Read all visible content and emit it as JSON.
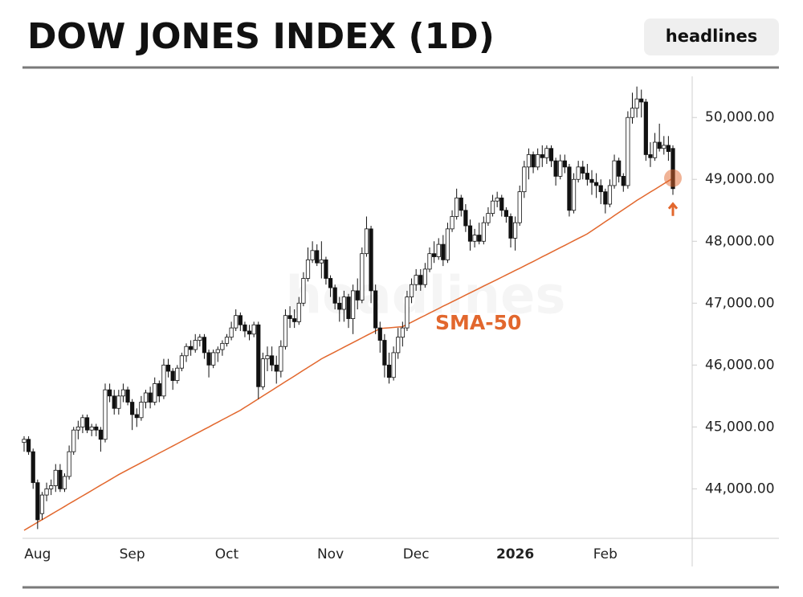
{
  "chart_data": {
    "type": "candlestick",
    "title": "DOW JONES INDEX (1D)",
    "button": "headlines",
    "watermark": "headlines",
    "up_color": "#ffffff",
    "down_color": "#111111",
    "ylim": [
      43200,
      50600
    ],
    "yticks": [
      {
        "value": 44000,
        "label": "44,000.00"
      },
      {
        "value": 45000,
        "label": "45,000.00"
      },
      {
        "value": 46000,
        "label": "46,000.00"
      },
      {
        "value": 47000,
        "label": "47,000.00"
      },
      {
        "value": 48000,
        "label": "48,000.00"
      },
      {
        "value": 49000,
        "label": "49,000.00"
      },
      {
        "value": 50000,
        "label": "50,000.00"
      }
    ],
    "categories": [
      null,
      null,
      null,
      "Aug",
      null,
      null,
      null,
      null,
      null,
      null,
      null,
      null,
      null,
      null,
      null,
      null,
      null,
      null,
      null,
      null,
      null,
      null,
      null,
      null,
      "Sep",
      null,
      null,
      null,
      null,
      null,
      null,
      null,
      null,
      null,
      null,
      null,
      null,
      null,
      null,
      null,
      null,
      null,
      null,
      null,
      null,
      "Oct",
      null,
      null,
      null,
      null,
      null,
      null,
      null,
      null,
      null,
      null,
      null,
      null,
      null,
      null,
      null,
      null,
      null,
      null,
      null,
      null,
      null,
      null,
      "Nov",
      null,
      null,
      null,
      null,
      null,
      null,
      null,
      null,
      null,
      null,
      null,
      null,
      null,
      null,
      null,
      null,
      null,
      null,
      "Dec",
      null,
      null,
      null,
      null,
      null,
      null,
      null,
      null,
      null,
      null,
      null,
      null,
      null,
      null,
      null,
      null,
      null,
      null,
      null,
      null,
      null,
      "2026",
      null,
      null,
      null,
      null,
      null,
      null,
      null,
      null,
      null,
      null,
      null,
      null,
      null,
      null,
      null,
      null,
      null,
      null,
      null,
      "Feb",
      null,
      null,
      null,
      null,
      null,
      null,
      null,
      null,
      null,
      null,
      null,
      null,
      null,
      null,
      null
    ],
    "ohlc": [
      [
        44750,
        44850,
        44600,
        44800
      ],
      [
        44800,
        44850,
        44550,
        44600
      ],
      [
        44600,
        44650,
        44000,
        44100
      ],
      [
        44100,
        44150,
        43350,
        43500
      ],
      [
        43600,
        43950,
        43500,
        43900
      ],
      [
        43900,
        44100,
        43800,
        44000
      ],
      [
        44000,
        44150,
        43900,
        44050
      ],
      [
        44050,
        44400,
        43950,
        44300
      ],
      [
        44300,
        44400,
        43950,
        44000
      ],
      [
        44000,
        44250,
        43950,
        44200
      ],
      [
        44200,
        44700,
        44150,
        44600
      ],
      [
        44600,
        45000,
        44550,
        44950
      ],
      [
        44950,
        45100,
        44800,
        45000
      ],
      [
        45000,
        45200,
        44900,
        45150
      ],
      [
        45150,
        45200,
        44900,
        44950
      ],
      [
        44950,
        45050,
        44850,
        45000
      ],
      [
        45000,
        45050,
        44850,
        44950
      ],
      [
        44950,
        45000,
        44600,
        44800
      ],
      [
        44800,
        45700,
        44750,
        45600
      ],
      [
        45600,
        45700,
        45400,
        45500
      ],
      [
        45500,
        45600,
        45200,
        45300
      ],
      [
        45300,
        45600,
        45200,
        45500
      ],
      [
        45500,
        45700,
        45400,
        45600
      ],
      [
        45600,
        45650,
        45350,
        45400
      ],
      [
        45400,
        45450,
        44950,
        45200
      ],
      [
        45200,
        45300,
        45000,
        45150
      ],
      [
        45150,
        45500,
        45100,
        45400
      ],
      [
        45400,
        45600,
        45300,
        45550
      ],
      [
        45550,
        45650,
        45300,
        45400
      ],
      [
        45400,
        45800,
        45350,
        45700
      ],
      [
        45700,
        45750,
        45400,
        45500
      ],
      [
        45500,
        46100,
        45450,
        46000
      ],
      [
        46000,
        46100,
        45800,
        45900
      ],
      [
        45900,
        45950,
        45600,
        45750
      ],
      [
        45750,
        46000,
        45700,
        45950
      ],
      [
        45950,
        46200,
        45900,
        46150
      ],
      [
        46150,
        46350,
        46050,
        46300
      ],
      [
        46300,
        46400,
        46150,
        46250
      ],
      [
        46250,
        46500,
        46200,
        46400
      ],
      [
        46400,
        46500,
        46300,
        46450
      ],
      [
        46450,
        46500,
        46100,
        46200
      ],
      [
        46200,
        46250,
        45800,
        46000
      ],
      [
        46000,
        46250,
        45950,
        46200
      ],
      [
        46200,
        46300,
        46050,
        46250
      ],
      [
        46250,
        46400,
        46150,
        46350
      ],
      [
        46350,
        46500,
        46300,
        46450
      ],
      [
        46450,
        46700,
        46400,
        46600
      ],
      [
        46600,
        46900,
        46550,
        46800
      ],
      [
        46800,
        46850,
        46550,
        46650
      ],
      [
        46650,
        46700,
        46450,
        46550
      ],
      [
        46550,
        46650,
        46400,
        46500
      ],
      [
        46500,
        46700,
        46450,
        46650
      ],
      [
        46650,
        46700,
        45450,
        45650
      ],
      [
        45650,
        46200,
        45600,
        46100
      ],
      [
        46100,
        46300,
        45900,
        46150
      ],
      [
        46150,
        46300,
        45900,
        46000
      ],
      [
        46000,
        46150,
        45700,
        45900
      ],
      [
        45900,
        46400,
        45800,
        46300
      ],
      [
        46300,
        46900,
        46250,
        46800
      ],
      [
        46800,
        46950,
        46600,
        46750
      ],
      [
        46750,
        46900,
        46600,
        46700
      ],
      [
        46700,
        47100,
        46650,
        47000
      ],
      [
        47000,
        47500,
        46950,
        47400
      ],
      [
        47400,
        47900,
        47350,
        47700
      ],
      [
        47700,
        48000,
        47650,
        47850
      ],
      [
        47850,
        47950,
        47600,
        47650
      ],
      [
        47650,
        48000,
        47400,
        47700
      ],
      [
        47700,
        47750,
        47300,
        47400
      ],
      [
        47400,
        47450,
        47100,
        47250
      ],
      [
        47250,
        47300,
        46900,
        47000
      ],
      [
        47000,
        47100,
        46700,
        46900
      ],
      [
        46900,
        47200,
        46700,
        47100
      ],
      [
        47100,
        47150,
        46600,
        46750
      ],
      [
        46750,
        47300,
        46500,
        47200
      ],
      [
        47200,
        47400,
        46900,
        47050
      ],
      [
        47050,
        47900,
        47000,
        47800
      ],
      [
        47800,
        48400,
        47750,
        48200
      ],
      [
        48200,
        48250,
        47000,
        47200
      ],
      [
        47200,
        47300,
        46500,
        46600
      ],
      [
        46600,
        46700,
        46200,
        46400
      ],
      [
        46400,
        46500,
        45800,
        46000
      ],
      [
        46000,
        46200,
        45700,
        45800
      ],
      [
        45800,
        46300,
        45750,
        46200
      ],
      [
        46200,
        46600,
        46100,
        46450
      ],
      [
        46450,
        46700,
        46300,
        46600
      ],
      [
        46600,
        47200,
        46550,
        47100
      ],
      [
        47100,
        47400,
        47000,
        47300
      ],
      [
        47300,
        47550,
        47200,
        47450
      ],
      [
        47450,
        47550,
        47200,
        47300
      ],
      [
        47300,
        47650,
        47250,
        47550
      ],
      [
        47550,
        47900,
        47500,
        47800
      ],
      [
        47800,
        48000,
        47650,
        47750
      ],
      [
        47750,
        48050,
        47700,
        47950
      ],
      [
        47950,
        48100,
        47600,
        47700
      ],
      [
        47700,
        48300,
        47650,
        48200
      ],
      [
        48200,
        48500,
        48150,
        48400
      ],
      [
        48400,
        48850,
        48350,
        48700
      ],
      [
        48700,
        48750,
        48400,
        48500
      ],
      [
        48500,
        48600,
        48150,
        48250
      ],
      [
        48250,
        48350,
        47850,
        48000
      ],
      [
        48000,
        48200,
        47900,
        48100
      ],
      [
        48100,
        48300,
        47950,
        48000
      ],
      [
        48000,
        48400,
        47950,
        48300
      ],
      [
        48300,
        48550,
        48250,
        48450
      ],
      [
        48450,
        48750,
        48400,
        48650
      ],
      [
        48650,
        48800,
        48550,
        48700
      ],
      [
        48700,
        48750,
        48400,
        48500
      ],
      [
        48500,
        48550,
        48300,
        48400
      ],
      [
        48400,
        48450,
        47900,
        48050
      ],
      [
        48050,
        48400,
        47850,
        48300
      ],
      [
        48300,
        48900,
        48250,
        48800
      ],
      [
        48800,
        49300,
        48700,
        49200
      ],
      [
        49200,
        49500,
        49000,
        49400
      ],
      [
        49400,
        49450,
        49100,
        49200
      ],
      [
        49200,
        49500,
        49150,
        49400
      ],
      [
        49400,
        49550,
        49200,
        49350
      ],
      [
        49350,
        49550,
        49250,
        49500
      ],
      [
        49500,
        49550,
        49200,
        49300
      ],
      [
        49300,
        49350,
        48900,
        49050
      ],
      [
        49050,
        49400,
        49000,
        49300
      ],
      [
        49300,
        49400,
        49100,
        49200
      ],
      [
        49200,
        49250,
        48400,
        48500
      ],
      [
        48500,
        49100,
        48450,
        49000
      ],
      [
        49000,
        49300,
        48950,
        49200
      ],
      [
        49200,
        49300,
        49000,
        49100
      ],
      [
        49100,
        49250,
        48900,
        49000
      ],
      [
        49000,
        49150,
        48750,
        48950
      ],
      [
        48950,
        49100,
        48700,
        48900
      ],
      [
        48900,
        49000,
        48600,
        48800
      ],
      [
        48800,
        48850,
        48450,
        48600
      ],
      [
        48600,
        49000,
        48550,
        48900
      ],
      [
        48900,
        49400,
        48850,
        49300
      ],
      [
        49300,
        49350,
        48950,
        49050
      ],
      [
        49050,
        49100,
        48800,
        48900
      ],
      [
        48900,
        50100,
        48850,
        50000
      ],
      [
        50000,
        50400,
        49900,
        50150
      ],
      [
        50150,
        50500,
        50000,
        50300
      ],
      [
        50300,
        50450,
        50000,
        50250
      ],
      [
        50250,
        50300,
        49300,
        49400
      ],
      [
        49400,
        49600,
        49200,
        49350
      ],
      [
        49350,
        49750,
        49300,
        49600
      ],
      [
        49600,
        49900,
        49450,
        49500
      ],
      [
        49500,
        49700,
        49400,
        49550
      ],
      [
        49550,
        49700,
        49300,
        49450
      ],
      [
        49500,
        49550,
        48750,
        48850
      ]
    ],
    "sma": {
      "name": "SMA-50",
      "color": "#e2672d",
      "values": [
        43330,
        43373,
        43416,
        43459,
        43501,
        43544,
        43587,
        43630,
        43673,
        43716,
        43759,
        43801,
        43844,
        43887,
        43930,
        43973,
        44016,
        44059,
        44101,
        44144,
        44187,
        44230,
        44269,
        44307,
        44346,
        44384,
        44423,
        44461,
        44500,
        44538,
        44577,
        44615,
        44654,
        44692,
        44731,
        44769,
        44808,
        44846,
        44885,
        44923,
        44962,
        45000,
        45039,
        45077,
        45116,
        45154,
        45193,
        45231,
        45270,
        45316,
        45362,
        45408,
        45454,
        45501,
        45547,
        45593,
        45639,
        45685,
        45731,
        45777,
        45823,
        45869,
        45916,
        45962,
        46008,
        46054,
        46100,
        46138,
        46175,
        46213,
        46251,
        46288,
        46326,
        46364,
        46402,
        46439,
        46477,
        46515,
        46552,
        46590,
        46596,
        46602,
        46608,
        46614,
        46620,
        46657,
        46693,
        46730,
        46767,
        46803,
        46840,
        46877,
        46913,
        46950,
        46986,
        47022,
        47058,
        47094,
        47131,
        47167,
        47203,
        47239,
        47275,
        47311,
        47347,
        47383,
        47419,
        47456,
        47492,
        47528,
        47564,
        47600,
        47637,
        47674,
        47711,
        47749,
        47786,
        47823,
        47860,
        47897,
        47934,
        47971,
        48009,
        48046,
        48083,
        48120,
        48169,
        48218,
        48267,
        48316,
        48365,
        48415,
        48464,
        48513,
        48562,
        48611,
        48660,
        48705,
        48750,
        48795,
        48840,
        48885,
        48930,
        48975,
        49020
      ]
    }
  }
}
